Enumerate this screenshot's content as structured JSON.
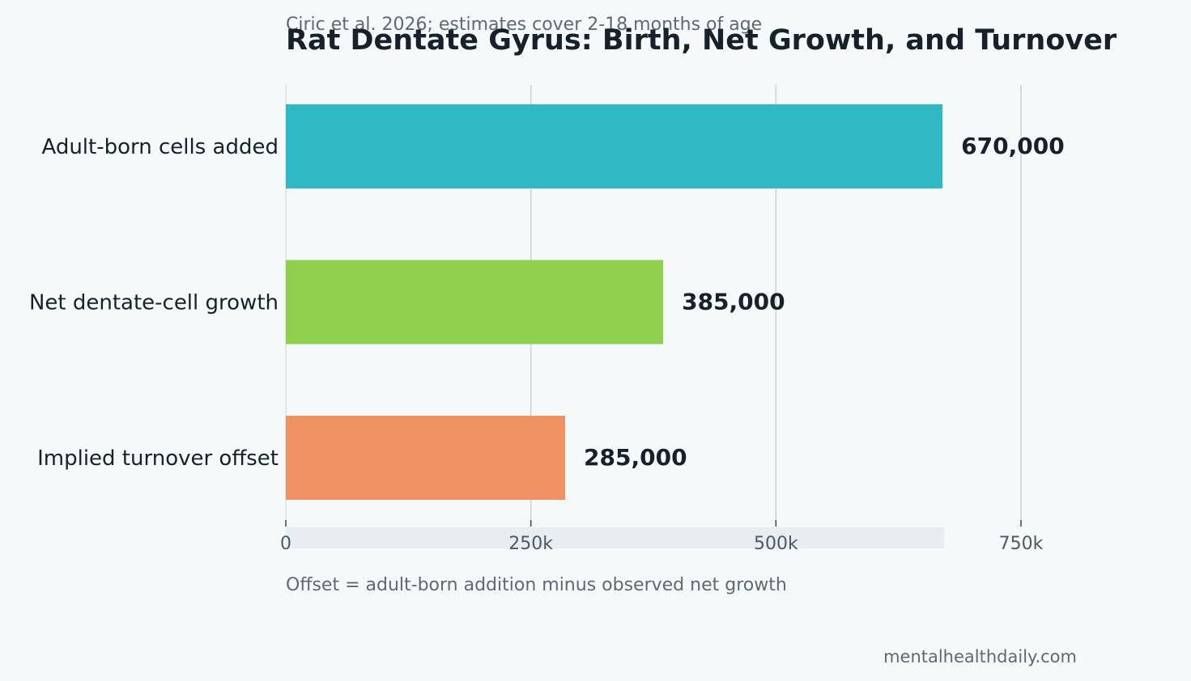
{
  "chart_data": {
    "type": "bar",
    "orientation": "horizontal",
    "title": "Rat Dentate Gyrus: Birth, Net Growth, and Turnover",
    "subtitle": "Ciric et al. 2026; estimates cover 2-18 months of age",
    "categories": [
      "Adult-born cells added",
      "Net dentate-cell growth",
      "Implied turnover offset"
    ],
    "values": [
      670000,
      385000,
      285000
    ],
    "value_labels": [
      "670,000",
      "385,000",
      "285,000"
    ],
    "colors": [
      "#31b8c5",
      "#91d04e",
      "#f09163"
    ],
    "xlim": [
      0,
      750000
    ],
    "xticks": [
      0,
      250000,
      500000,
      750000
    ],
    "xtick_labels": [
      "0",
      "250k",
      "500k",
      "750k"
    ],
    "grid": "vertical",
    "xlabel": "",
    "ylabel": "",
    "note": "Offset = adult-born addition minus observed net growth"
  },
  "footer": {
    "source": "mentalhealthdaily.com"
  }
}
